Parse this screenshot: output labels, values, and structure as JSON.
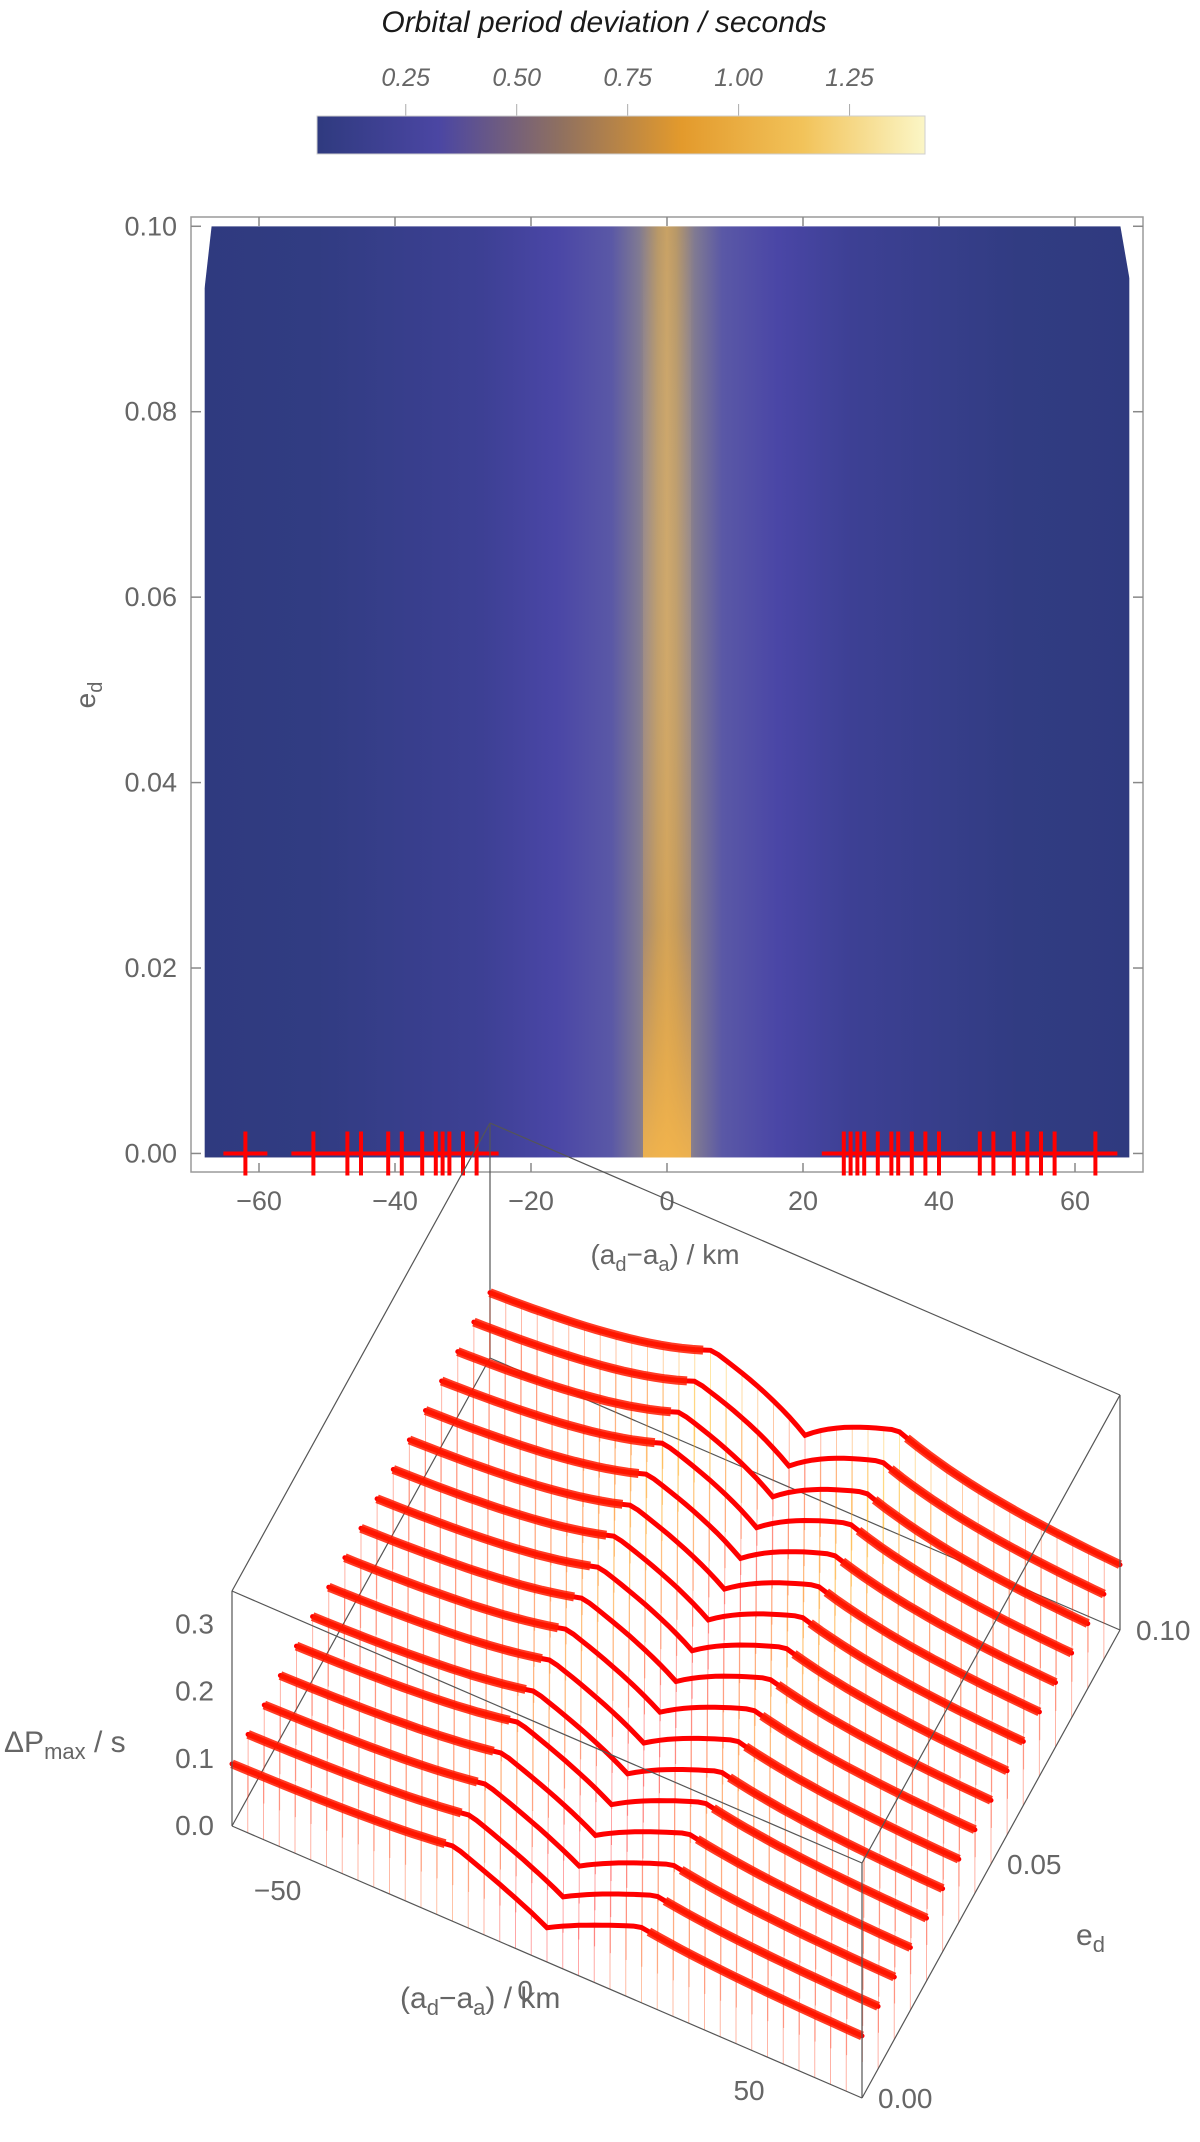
{
  "colorbar": {
    "title": "Orbital period deviation / seconds",
    "ticks": [
      "0.25",
      "0.50",
      "0.75",
      "1.00",
      "1.25"
    ],
    "tick_values": [
      0.25,
      0.5,
      0.75,
      1.0,
      1.25
    ],
    "range": [
      0.05,
      1.42
    ],
    "colors": [
      "#2f3a7f",
      "#4b46a3",
      "#8f7060",
      "#e39a2c",
      "#f2c35a",
      "#fbf6c6"
    ]
  },
  "chart_data": [
    {
      "type": "heatmap",
      "title": "",
      "xlabel_parts": {
        "open": "(a",
        "sub1": "d",
        "mid": "−a",
        "sub2": "a",
        "close": ") / km"
      },
      "ylabel_parts": {
        "base": "e",
        "sub": "d"
      },
      "xlim": [
        -70,
        70
      ],
      "ylim": [
        -0.002,
        0.101
      ],
      "x_ticks": [
        -60,
        -40,
        -20,
        0,
        20,
        40,
        60
      ],
      "x_tick_labels": [
        "−60",
        "−40",
        "−20",
        "0",
        "20",
        "40",
        "60"
      ],
      "y_ticks": [
        0.0,
        0.02,
        0.04,
        0.06,
        0.08,
        0.1
      ],
      "y_tick_labels": [
        "0.00",
        "0.02",
        "0.04",
        "0.06",
        "0.08",
        "0.10"
      ],
      "data_x_range": [
        -68,
        68
      ],
      "data_y_range": [
        0.0,
        0.1
      ],
      "peak_at_x": 0,
      "marker_color": "#ff0000",
      "markers_x": [
        -62,
        -52,
        -47,
        -45,
        -41,
        -39,
        -36,
        -34,
        -33,
        -32,
        -30,
        -28,
        26,
        27,
        28,
        29,
        31,
        33,
        34,
        36,
        38,
        40,
        46,
        48,
        51,
        53,
        55,
        57,
        63
      ]
    },
    {
      "type": "surface3d",
      "title": "",
      "zlabel_parts": {
        "base": "ΔP",
        "sub": "max",
        "after": " / s"
      },
      "xlabel_parts": {
        "open": "(a",
        "sub1": "d",
        "mid": "−a",
        "sub2": "a",
        "close": ") / km"
      },
      "ylabel_parts": {
        "base": "e",
        "sub": "d"
      },
      "x_ticks": [
        -50,
        0,
        50
      ],
      "x_tick_labels": [
        "−50",
        "0",
        "50"
      ],
      "y_ticks": [
        0.0,
        0.05,
        0.1
      ],
      "y_tick_labels": [
        "0.00",
        "0.05",
        "0.10"
      ],
      "z_ticks": [
        0.0,
        0.1,
        0.2,
        0.3
      ],
      "z_tick_labels": [
        "0.0",
        "0.1",
        "0.2",
        "0.3"
      ],
      "xlim": [
        -68,
        68
      ],
      "ylim": [
        0.0,
        0.1
      ],
      "zlim": [
        0.0,
        0.35
      ],
      "colors": {
        "low": "#ff0000",
        "mid": "#ffff00",
        "high": "#00ff00"
      }
    }
  ]
}
